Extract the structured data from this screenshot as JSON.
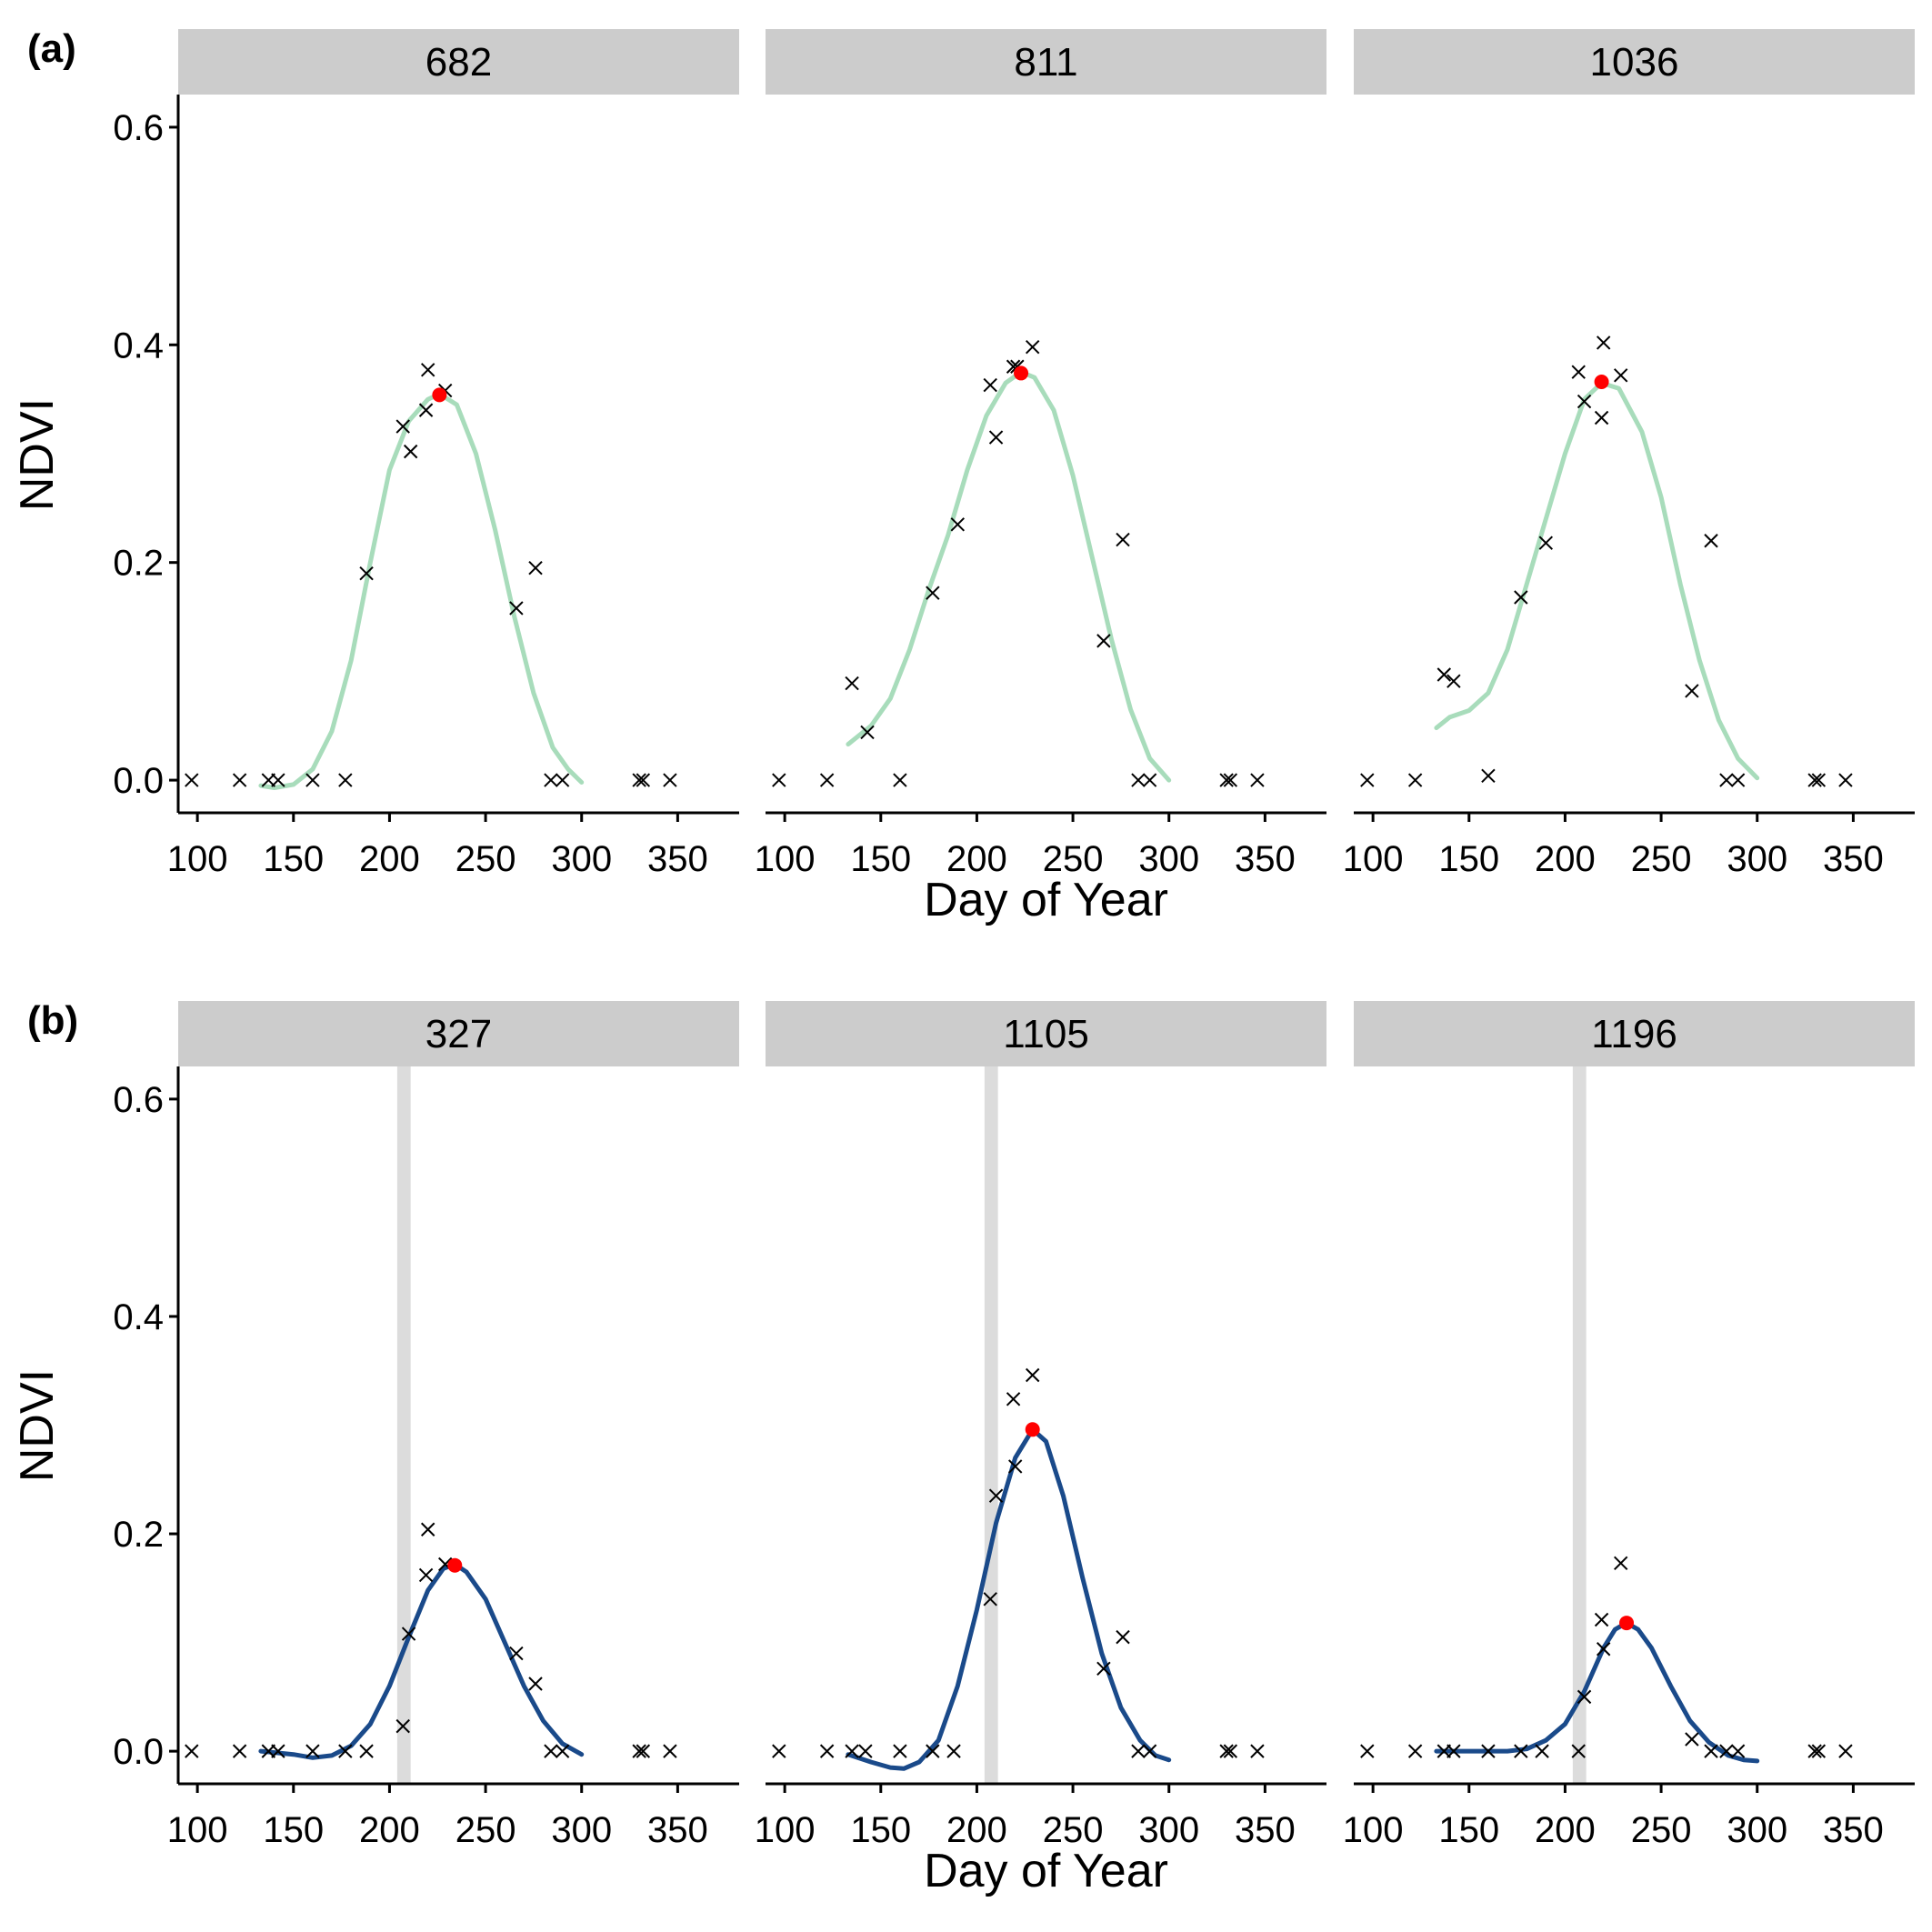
{
  "rows": [
    {
      "label": "(a)",
      "xlabel": "Day of Year",
      "ylabel": "NDVI"
    },
    {
      "label": "(b)",
      "xlabel": "Day of Year",
      "ylabel": "NDVI"
    }
  ],
  "colors": {
    "curve_a": "#a8dcbb",
    "curve_b": "#1a4a8a",
    "peak": "#ff0000",
    "obs": "#000000",
    "strip": "#cccccc",
    "band": "#dcdcdc"
  },
  "chart_data": [
    {
      "type": "scatter",
      "panel": "682",
      "row": 0,
      "xlim": [
        90,
        382
      ],
      "ylim": [
        -0.03,
        0.63
      ],
      "x_ticks": [
        100,
        150,
        200,
        250,
        300,
        350
      ],
      "y_ticks": [
        0.0,
        0.2,
        0.4,
        0.6
      ],
      "points": [
        [
          97,
          0
        ],
        [
          122,
          0
        ],
        [
          137,
          0
        ],
        [
          142,
          0
        ],
        [
          160,
          0
        ],
        [
          177,
          0
        ],
        [
          188,
          0.19
        ],
        [
          207,
          0.325
        ],
        [
          211,
          0.302
        ],
        [
          219,
          0.34
        ],
        [
          220,
          0.377
        ],
        [
          229,
          0.358
        ],
        [
          266,
          0.158
        ],
        [
          276,
          0.195
        ],
        [
          284,
          0
        ],
        [
          290,
          0
        ],
        [
          330,
          0
        ],
        [
          332,
          0
        ],
        [
          346,
          0
        ]
      ],
      "curve": [
        [
          133,
          -0.005
        ],
        [
          140,
          -0.007
        ],
        [
          150,
          -0.004
        ],
        [
          160,
          0.01
        ],
        [
          170,
          0.045
        ],
        [
          180,
          0.11
        ],
        [
          190,
          0.2
        ],
        [
          200,
          0.285
        ],
        [
          210,
          0.33
        ],
        [
          220,
          0.35
        ],
        [
          226,
          0.355
        ],
        [
          235,
          0.345
        ],
        [
          245,
          0.3
        ],
        [
          255,
          0.23
        ],
        [
          265,
          0.15
        ],
        [
          275,
          0.08
        ],
        [
          285,
          0.03
        ],
        [
          293,
          0.01
        ],
        [
          300,
          -0.002
        ]
      ],
      "peak": [
        226,
        0.354
      ],
      "band": null
    },
    {
      "type": "scatter",
      "panel": "811",
      "row": 0,
      "xlim": [
        90,
        382
      ],
      "ylim": [
        -0.03,
        0.63
      ],
      "x_ticks": [
        100,
        150,
        200,
        250,
        300,
        350
      ],
      "y_ticks": [
        0.0,
        0.2,
        0.4,
        0.6
      ],
      "points": [
        [
          97,
          0
        ],
        [
          122,
          0
        ],
        [
          135,
          0.089
        ],
        [
          143,
          0.044
        ],
        [
          160,
          0
        ],
        [
          177,
          0.172
        ],
        [
          190,
          0.235
        ],
        [
          207,
          0.363
        ],
        [
          210,
          0.315
        ],
        [
          219,
          0.38
        ],
        [
          221,
          0.38
        ],
        [
          229,
          0.398
        ],
        [
          266,
          0.128
        ],
        [
          276,
          0.221
        ],
        [
          284,
          0
        ],
        [
          290,
          0
        ],
        [
          330,
          0
        ],
        [
          332,
          0
        ],
        [
          346,
          0
        ]
      ],
      "curve": [
        [
          133,
          0.033
        ],
        [
          145,
          0.05
        ],
        [
          155,
          0.075
        ],
        [
          165,
          0.12
        ],
        [
          175,
          0.175
        ],
        [
          185,
          0.225
        ],
        [
          195,
          0.285
        ],
        [
          205,
          0.335
        ],
        [
          215,
          0.365
        ],
        [
          223,
          0.375
        ],
        [
          230,
          0.37
        ],
        [
          240,
          0.34
        ],
        [
          250,
          0.28
        ],
        [
          260,
          0.205
        ],
        [
          270,
          0.13
        ],
        [
          280,
          0.065
        ],
        [
          290,
          0.02
        ],
        [
          300,
          0
        ]
      ],
      "peak": [
        223,
        0.374
      ],
      "band": null
    },
    {
      "type": "scatter",
      "panel": "1036",
      "row": 0,
      "xlim": [
        90,
        382
      ],
      "ylim": [
        -0.03,
        0.63
      ],
      "x_ticks": [
        100,
        150,
        200,
        250,
        300,
        350
      ],
      "y_ticks": [
        0.0,
        0.2,
        0.4,
        0.6
      ],
      "points": [
        [
          97,
          0
        ],
        [
          122,
          0
        ],
        [
          137,
          0.097
        ],
        [
          142,
          0.091
        ],
        [
          160,
          0.004
        ],
        [
          177,
          0.168
        ],
        [
          190,
          0.218
        ],
        [
          207,
          0.375
        ],
        [
          210,
          0.348
        ],
        [
          219,
          0.333
        ],
        [
          220,
          0.402
        ],
        [
          229,
          0.372
        ],
        [
          266,
          0.082
        ],
        [
          276,
          0.22
        ],
        [
          284,
          0
        ],
        [
          290,
          0
        ],
        [
          330,
          0
        ],
        [
          332,
          0
        ],
        [
          346,
          0
        ]
      ],
      "curve": [
        [
          133,
          0.048
        ],
        [
          140,
          0.058
        ],
        [
          150,
          0.064
        ],
        [
          160,
          0.08
        ],
        [
          170,
          0.12
        ],
        [
          180,
          0.18
        ],
        [
          190,
          0.24
        ],
        [
          200,
          0.3
        ],
        [
          210,
          0.35
        ],
        [
          219,
          0.365
        ],
        [
          228,
          0.36
        ],
        [
          240,
          0.32
        ],
        [
          250,
          0.26
        ],
        [
          260,
          0.18
        ],
        [
          270,
          0.11
        ],
        [
          280,
          0.055
        ],
        [
          290,
          0.02
        ],
        [
          300,
          0.002
        ]
      ],
      "peak": [
        219,
        0.366
      ],
      "band": null
    },
    {
      "type": "scatter",
      "panel": "327",
      "row": 1,
      "xlim": [
        90,
        382
      ],
      "ylim": [
        -0.03,
        0.63
      ],
      "x_ticks": [
        100,
        150,
        200,
        250,
        300,
        350
      ],
      "y_ticks": [
        0.0,
        0.2,
        0.4,
        0.6
      ],
      "points": [
        [
          97,
          0
        ],
        [
          122,
          0
        ],
        [
          137,
          0
        ],
        [
          142,
          0
        ],
        [
          160,
          0
        ],
        [
          177,
          0
        ],
        [
          188,
          0
        ],
        [
          207,
          0.023
        ],
        [
          210,
          0.108
        ],
        [
          219,
          0.162
        ],
        [
          220,
          0.204
        ],
        [
          229,
          0.172
        ],
        [
          266,
          0.09
        ],
        [
          276,
          0.062
        ],
        [
          284,
          0
        ],
        [
          290,
          0
        ],
        [
          330,
          0
        ],
        [
          332,
          0
        ],
        [
          346,
          0
        ]
      ],
      "curve": [
        [
          133,
          0
        ],
        [
          150,
          -0.003
        ],
        [
          160,
          -0.006
        ],
        [
          170,
          -0.004
        ],
        [
          180,
          0.005
        ],
        [
          190,
          0.025
        ],
        [
          200,
          0.06
        ],
        [
          210,
          0.105
        ],
        [
          220,
          0.148
        ],
        [
          228,
          0.168
        ],
        [
          234,
          0.172
        ],
        [
          240,
          0.165
        ],
        [
          250,
          0.14
        ],
        [
          260,
          0.1
        ],
        [
          270,
          0.06
        ],
        [
          280,
          0.028
        ],
        [
          290,
          0.007
        ],
        [
          300,
          -0.003
        ]
      ],
      "peak": [
        234,
        0.171
      ],
      "band": [
        204,
        211
      ]
    },
    {
      "type": "scatter",
      "panel": "1105",
      "row": 1,
      "xlim": [
        90,
        382
      ],
      "ylim": [
        -0.03,
        0.63
      ],
      "x_ticks": [
        100,
        150,
        200,
        250,
        300,
        350
      ],
      "y_ticks": [
        0.0,
        0.2,
        0.4,
        0.6
      ],
      "points": [
        [
          97,
          0
        ],
        [
          122,
          0
        ],
        [
          135,
          0
        ],
        [
          142,
          0
        ],
        [
          160,
          0
        ],
        [
          177,
          0
        ],
        [
          188,
          0
        ],
        [
          207,
          0.14
        ],
        [
          210,
          0.235
        ],
        [
          219,
          0.324
        ],
        [
          220,
          0.262
        ],
        [
          229,
          0.346
        ],
        [
          266,
          0.076
        ],
        [
          276,
          0.105
        ],
        [
          284,
          0
        ],
        [
          290,
          0
        ],
        [
          330,
          0
        ],
        [
          332,
          0
        ],
        [
          346,
          0
        ]
      ],
      "curve": [
        [
          133,
          -0.003
        ],
        [
          145,
          -0.01
        ],
        [
          155,
          -0.015
        ],
        [
          162,
          -0.016
        ],
        [
          170,
          -0.01
        ],
        [
          180,
          0.01
        ],
        [
          190,
          0.06
        ],
        [
          200,
          0.13
        ],
        [
          210,
          0.21
        ],
        [
          220,
          0.27
        ],
        [
          229,
          0.296
        ],
        [
          236,
          0.285
        ],
        [
          245,
          0.235
        ],
        [
          255,
          0.16
        ],
        [
          265,
          0.09
        ],
        [
          275,
          0.04
        ],
        [
          285,
          0.01
        ],
        [
          293,
          -0.004
        ],
        [
          300,
          -0.008
        ]
      ],
      "peak": [
        229,
        0.296
      ],
      "band": [
        204,
        211
      ]
    },
    {
      "type": "scatter",
      "panel": "1196",
      "row": 1,
      "xlim": [
        90,
        382
      ],
      "ylim": [
        -0.03,
        0.63
      ],
      "x_ticks": [
        100,
        150,
        200,
        250,
        300,
        350
      ],
      "y_ticks": [
        0.0,
        0.2,
        0.4,
        0.6
      ],
      "points": [
        [
          97,
          0
        ],
        [
          122,
          0
        ],
        [
          137,
          0
        ],
        [
          142,
          0
        ],
        [
          160,
          0
        ],
        [
          177,
          0
        ],
        [
          188,
          0
        ],
        [
          207,
          0
        ],
        [
          210,
          0.05
        ],
        [
          219,
          0.121
        ],
        [
          220,
          0.094
        ],
        [
          229,
          0.173
        ],
        [
          266,
          0.011
        ],
        [
          276,
          0
        ],
        [
          284,
          0
        ],
        [
          290,
          0
        ],
        [
          330,
          0
        ],
        [
          332,
          0
        ],
        [
          346,
          0
        ]
      ],
      "curve": [
        [
          133,
          0
        ],
        [
          150,
          0
        ],
        [
          160,
          0
        ],
        [
          170,
          0
        ],
        [
          180,
          0.002
        ],
        [
          190,
          0.01
        ],
        [
          200,
          0.025
        ],
        [
          210,
          0.055
        ],
        [
          220,
          0.095
        ],
        [
          226,
          0.112
        ],
        [
          232,
          0.118
        ],
        [
          238,
          0.112
        ],
        [
          245,
          0.095
        ],
        [
          255,
          0.06
        ],
        [
          265,
          0.028
        ],
        [
          275,
          0.008
        ],
        [
          285,
          -0.004
        ],
        [
          293,
          -0.008
        ],
        [
          300,
          -0.009
        ]
      ],
      "peak": [
        232,
        0.118
      ],
      "band": [
        204,
        211
      ]
    }
  ]
}
